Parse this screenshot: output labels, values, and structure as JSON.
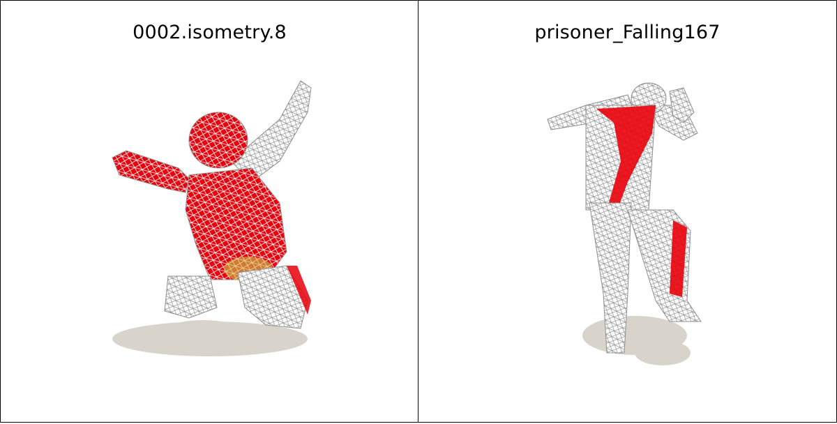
{
  "panels": [
    {
      "title": "0002.isometry.8"
    },
    {
      "title": "prisoner_Falling167"
    }
  ],
  "colors": {
    "shadow": "#d8d4cc",
    "mesh_wire": "#ffffff",
    "mesh_line": "#9a9a9a",
    "highlight": "#e8000a",
    "secondary": "#c8c850"
  }
}
